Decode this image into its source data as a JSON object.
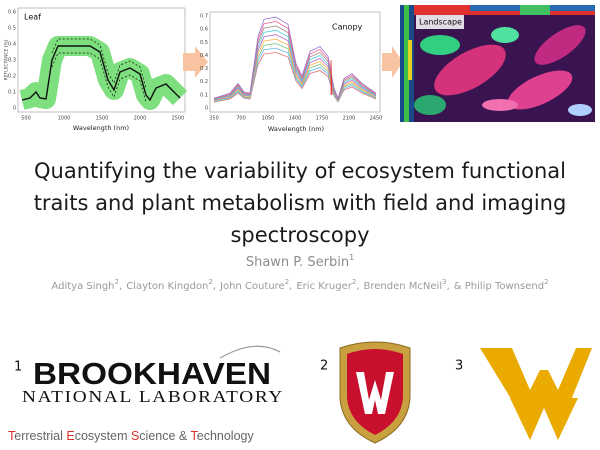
{
  "panels": [
    {
      "label": "Leaf",
      "x_label": "Wavelength (nm)",
      "y_label": "REFLECTANCE (%)",
      "xticks": [
        "500",
        "1000",
        "1500",
        "2000",
        "2500"
      ],
      "yticks": [
        "0",
        "0.1",
        "0.2",
        "0.3",
        "0.4",
        "0.5",
        "0.6"
      ]
    },
    {
      "label": "Canopy",
      "x_label": "Wavelength (nm)",
      "xticks": [
        "350",
        "700",
        "1050",
        "1400",
        "1750",
        "2100",
        "2450"
      ],
      "yticks": [
        "0",
        "0.1",
        "0.2",
        "0.3",
        "0.4",
        "0.5",
        "0.6",
        "0.7"
      ]
    },
    {
      "label": "Landscape"
    }
  ],
  "title": [
    "Quantifying the variability of ecosystem functional",
    "traits and plant metabolism with field and imaging",
    "spectroscopy"
  ],
  "author": {
    "name": "Shawn P. Serbin",
    "sup": "1"
  },
  "coauthors": [
    {
      "name": "Aditya Singh",
      "sup": "2",
      "after": ","
    },
    {
      "name": "Clayton Kingdon",
      "sup": "2",
      "after": ","
    },
    {
      "name": "John Couture",
      "sup": "2",
      "after": ","
    },
    {
      "name": "Eric Kruger",
      "sup": "2",
      "after": ","
    },
    {
      "name": "Brenden McNeil",
      "sup": "3",
      "after": ","
    },
    {
      "name": "& Philip Townsend",
      "sup": "2"
    }
  ],
  "affiliations": [
    {
      "number": "1",
      "name": "BROOKHAVEN",
      "subname": "NATIONAL LABORATORY"
    },
    {
      "number": "2"
    },
    {
      "number": "3"
    }
  ],
  "tagline": {
    "color": "#666666",
    "accent_color": "#d9302c",
    "parts": [
      {
        "text": "T",
        "accent": true
      },
      {
        "text": "errestrial "
      },
      {
        "text": "E",
        "accent": true
      },
      {
        "text": "cosystem "
      },
      {
        "text": "S",
        "accent": true
      },
      {
        "text": "cience & "
      },
      {
        "text": "T",
        "accent": true
      },
      {
        "text": "echnology"
      }
    ]
  }
}
